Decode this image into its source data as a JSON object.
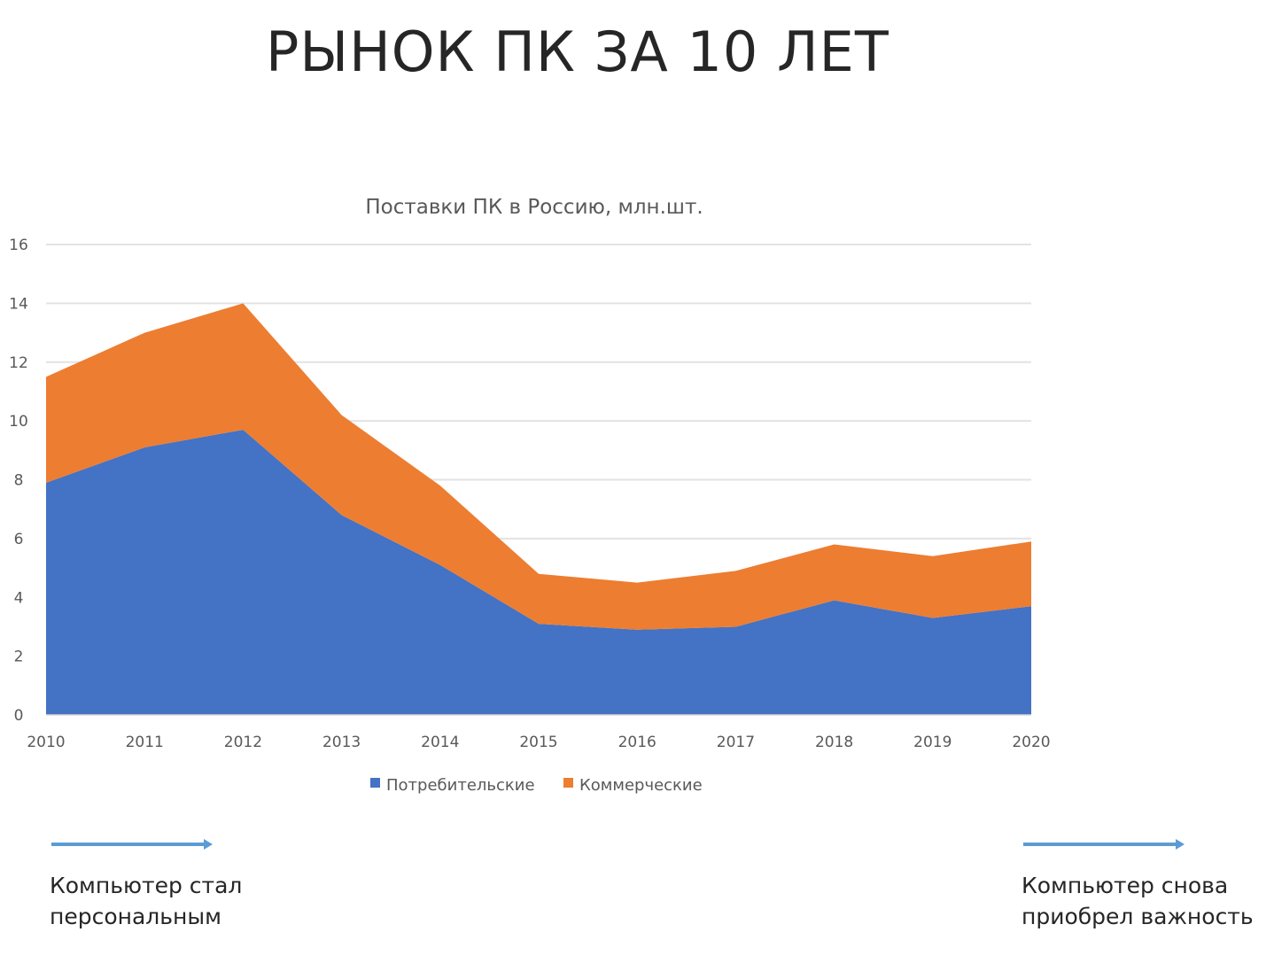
{
  "slide": {
    "title": "РЫНОК ПК ЗА 10 ЛЕТ",
    "note_left": [
      "Компьютер стал",
      "персональным"
    ],
    "note_right": [
      "Компьютер снова",
      "приобрел важность"
    ],
    "arrow_color": "#5b9bd5"
  },
  "chart_data": {
    "type": "area",
    "stacked": true,
    "title": "Поставки ПК в Россию, млн.шт.",
    "xlabel": "",
    "ylabel": "",
    "categories": [
      "2010",
      "2011",
      "2012",
      "2013",
      "2014",
      "2015",
      "2016",
      "2017",
      "2018",
      "2019",
      "2020"
    ],
    "ylim": [
      0,
      16
    ],
    "yticks": [
      0,
      2,
      4,
      6,
      8,
      10,
      12,
      14,
      16
    ],
    "grid": true,
    "legend_position": "bottom",
    "series": [
      {
        "name": "Потребительские",
        "color": "#4472c4",
        "values": [
          7.9,
          9.1,
          9.7,
          6.8,
          5.1,
          3.1,
          2.9,
          3.0,
          3.9,
          3.3,
          3.7
        ]
      },
      {
        "name": "Коммерческие",
        "color": "#ed7d31",
        "values": [
          3.6,
          3.9,
          4.3,
          3.4,
          2.7,
          1.7,
          1.6,
          1.9,
          1.9,
          2.1,
          2.2
        ]
      }
    ]
  }
}
